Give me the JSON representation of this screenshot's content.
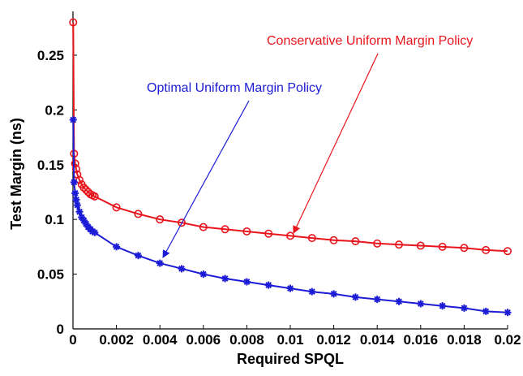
{
  "chart_data": {
    "type": "line",
    "xlabel": "Required SPQL",
    "ylabel": "Test Margin (ns)",
    "xlim": [
      0,
      0.02
    ],
    "ylim": [
      0,
      0.29
    ],
    "x_ticks": [
      "0",
      "0.002",
      "0.004",
      "0.006",
      "0.008",
      "0.01",
      "0.012",
      "0.014",
      "0.016",
      "0.018",
      "0.02"
    ],
    "x_tick_values": [
      0,
      0.002,
      0.004,
      0.006,
      0.008,
      0.01,
      0.012,
      0.014,
      0.016,
      0.018,
      0.02
    ],
    "y_ticks": [
      "0",
      "0.05",
      "0.1",
      "0.15",
      "0.2",
      "0.25"
    ],
    "y_tick_values": [
      0,
      0.05,
      0.1,
      0.15,
      0.2,
      0.25
    ],
    "grid": false,
    "series": [
      {
        "name": "Conservative Uniform Margin Policy",
        "color": "#e8141c",
        "marker": "circle",
        "x": [
          1e-05,
          5e-05,
          0.0001,
          0.00015,
          0.0002,
          0.0003,
          0.0004,
          0.0005,
          0.0006,
          0.0007,
          0.0008,
          0.0009,
          0.001,
          0.002,
          0.003,
          0.004,
          0.005,
          0.006,
          0.007,
          0.008,
          0.009,
          0.01,
          0.011,
          0.012,
          0.013,
          0.014,
          0.015,
          0.016,
          0.017,
          0.018,
          0.019,
          0.02
        ],
        "y": [
          0.28,
          0.16,
          0.151,
          0.146,
          0.141,
          0.136,
          0.132,
          0.129,
          0.127,
          0.125,
          0.123,
          0.122,
          0.121,
          0.111,
          0.105,
          0.1,
          0.097,
          0.093,
          0.091,
          0.089,
          0.087,
          0.085,
          0.083,
          0.081,
          0.08,
          0.078,
          0.077,
          0.076,
          0.075,
          0.074,
          0.072,
          0.071
        ]
      },
      {
        "name": "Optimal Uniform Margin Policy",
        "color": "#1c1cd6",
        "marker": "asterisk",
        "x": [
          1e-05,
          5e-05,
          0.0001,
          0.00015,
          0.0002,
          0.0003,
          0.0004,
          0.0005,
          0.0006,
          0.0007,
          0.0008,
          0.0009,
          0.001,
          0.002,
          0.003,
          0.004,
          0.005,
          0.006,
          0.007,
          0.008,
          0.009,
          0.01,
          0.011,
          0.012,
          0.013,
          0.014,
          0.015,
          0.016,
          0.017,
          0.018,
          0.019,
          0.02
        ],
        "y": [
          0.191,
          0.134,
          0.124,
          0.118,
          0.113,
          0.107,
          0.102,
          0.099,
          0.096,
          0.093,
          0.091,
          0.089,
          0.088,
          0.075,
          0.067,
          0.06,
          0.055,
          0.05,
          0.046,
          0.043,
          0.04,
          0.037,
          0.034,
          0.032,
          0.029,
          0.027,
          0.025,
          0.023,
          0.021,
          0.019,
          0.016,
          0.015
        ]
      }
    ],
    "annotations": [
      {
        "text": "Conservative Uniform Margin Policy",
        "color": "#e8141c",
        "arrow_to": {
          "x": 0.01,
          "y": 0.085
        }
      },
      {
        "text": "Optimal Uniform Margin Policy",
        "color": "#1c1cd6",
        "arrow_to": {
          "x": 0.004,
          "y": 0.06
        }
      }
    ]
  }
}
